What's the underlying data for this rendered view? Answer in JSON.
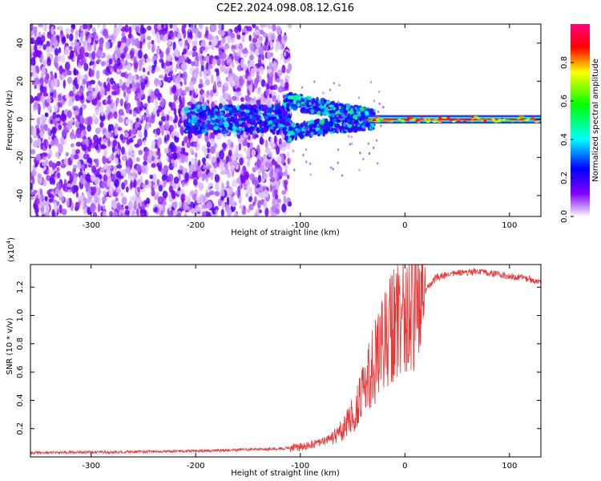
{
  "title": "C2E2.2024.098.08.12.G16",
  "chart_data": [
    {
      "type": "heatmap",
      "name": "spectrogram",
      "xlabel": "Height of straight line (km)",
      "ylabel": "Frequency (Hz)",
      "xlim": [
        -358,
        130
      ],
      "ylim": [
        -51,
        50
      ],
      "xticks": [
        -300,
        -200,
        -100,
        0,
        100
      ],
      "xtick_labels": [
        "-300",
        "-200",
        "-100",
        "0",
        "100"
      ],
      "yticks": [
        -40,
        -20,
        0,
        20,
        40
      ],
      "ytick_labels": [
        "-40",
        "-20",
        "0",
        "20",
        "40"
      ],
      "colorbar": {
        "label": "Normalized spectral amplitude",
        "range": [
          0,
          1
        ],
        "ticks": [
          0.0,
          0.2,
          0.4,
          0.6,
          0.8
        ],
        "tick_labels": [
          "0.0",
          "0.2",
          "0.4",
          "0.6",
          "0.8"
        ],
        "stops": [
          "#ffffff",
          "#8000ff",
          "#0000ff",
          "#00ffff",
          "#00ff00",
          "#ffff00",
          "#ff0000",
          "#ff0080"
        ]
      },
      "regions": [
        {
          "label": "broadband noise",
          "x": [
            -358,
            -110
          ],
          "y": [
            -51,
            50
          ],
          "amplitude": 0.1
        },
        {
          "label": "upper fringe",
          "x": [
            -115,
            -30
          ],
          "y": [
            2,
            16
          ],
          "amplitude": 0.45
        },
        {
          "label": "lower fringe",
          "x": [
            -115,
            -30
          ],
          "y": [
            -20,
            -2
          ],
          "amplitude": 0.45
        },
        {
          "label": "carrier",
          "x": [
            -200,
            130
          ],
          "y": [
            -1,
            1
          ],
          "amplitude": 0.9
        }
      ]
    },
    {
      "type": "line",
      "name": "snr",
      "xlabel": "Height of straight line (km)",
      "ylabel": "SNR (10 * v/v)",
      "y_scale_label": "(x10",
      "y_scale_exponent": "4",
      "y_scale_close": ")",
      "xlim": [
        -358,
        130
      ],
      "ylim": [
        0,
        13600
      ],
      "xticks": [
        -300,
        -200,
        -100,
        0,
        100
      ],
      "xtick_labels": [
        "-300",
        "-200",
        "-100",
        "0",
        "100"
      ],
      "yticks": [
        2000,
        4000,
        6000,
        8000,
        10000,
        12000
      ],
      "ytick_labels": [
        "0.2",
        "0.4",
        "0.6",
        "0.8",
        "1.0",
        "1.2"
      ],
      "color": "#ee3333",
      "series": [
        {
          "name": "SNR",
          "x": [
            -358,
            -300,
            -250,
            -200,
            -160,
            -120,
            -100,
            -80,
            -60,
            -50,
            -40,
            -30,
            -20,
            -15,
            -10,
            0,
            10,
            20,
            30,
            50,
            70,
            90,
            110,
            130
          ],
          "y": [
            300,
            330,
            370,
            420,
            500,
            580,
            700,
            1000,
            1800,
            3000,
            4500,
            6500,
            8000,
            9000,
            9500,
            9800,
            10500,
            11800,
            12700,
            13000,
            13100,
            12900,
            12700,
            12400
          ]
        }
      ]
    }
  ]
}
